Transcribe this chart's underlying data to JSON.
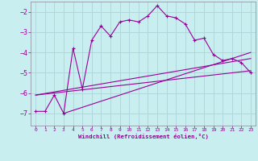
{
  "xlabel": "Windchill (Refroidissement éolien,°C)",
  "background_color": "#c8eef0",
  "grid_color": "#b0d8dc",
  "line_color": "#990099",
  "x_ticks": [
    0,
    1,
    2,
    3,
    4,
    5,
    6,
    7,
    8,
    9,
    10,
    11,
    12,
    13,
    14,
    15,
    16,
    17,
    18,
    19,
    20,
    21,
    22,
    23
  ],
  "y_ticks": [
    -7,
    -6,
    -5,
    -4,
    -3,
    -2
  ],
  "xlim": [
    -0.5,
    23.5
  ],
  "ylim": [
    -7.6,
    -1.5
  ],
  "series1_x": [
    0,
    1,
    2,
    3,
    4,
    5,
    6,
    7,
    8,
    9,
    10,
    11,
    12,
    13,
    14,
    15,
    16,
    17,
    18,
    19,
    20,
    21,
    22,
    23
  ],
  "series1_y": [
    -6.9,
    -6.9,
    -6.1,
    -7.0,
    -3.8,
    -5.8,
    -3.4,
    -2.7,
    -3.2,
    -2.5,
    -2.4,
    -2.5,
    -2.2,
    -1.7,
    -2.2,
    -2.3,
    -2.6,
    -3.4,
    -3.3,
    -4.1,
    -4.4,
    -4.3,
    -4.5,
    -5.0
  ],
  "series2_x": [
    0,
    23
  ],
  "series2_y": [
    -6.1,
    -4.9
  ],
  "series3_x": [
    0,
    23
  ],
  "series3_y": [
    -6.1,
    -4.3
  ],
  "series4_x": [
    3,
    23
  ],
  "series4_y": [
    -7.0,
    -4.0
  ]
}
